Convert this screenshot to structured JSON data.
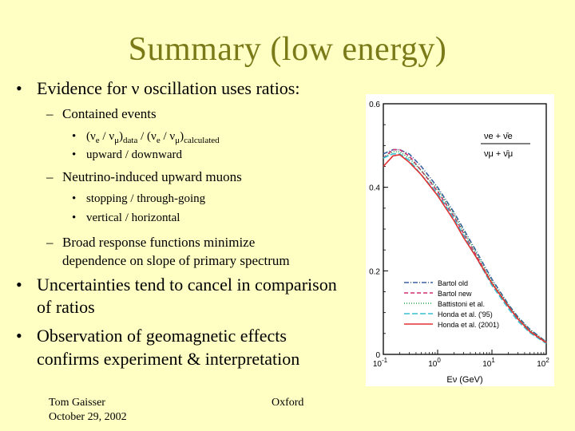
{
  "slide": {
    "title": "Summary (low energy)",
    "bullet1": "Evidence for ν oscillation uses ratios:",
    "sub1": "Contained events",
    "sub1a_parts": [
      "(ν",
      "e",
      " / ν",
      "μ",
      ")",
      "data",
      " / (ν",
      "e",
      " / ν",
      "μ",
      ")",
      "calculated"
    ],
    "sub1b": "upward / downward",
    "sub2": "Neutrino-induced upward muons",
    "sub2a": "stopping /  through-going",
    "sub2b": "vertical / horizontal",
    "sub3_line1": "Broad response functions minimize",
    "sub3_line2": "dependence on slope of primary spectrum",
    "bullet2_line1": "Uncertainties tend to cancel in comparison",
    "bullet2_line2": "of ratios",
    "bullet3_line1": "Observation of geomagnetic effects",
    "bullet3_line2": "confirms experiment & interpretation",
    "footer_author": "Tom Gaisser",
    "footer_date": "October 29, 2002",
    "footer_place": "Oxford",
    "bullet_char": "•",
    "dash_char": "–"
  },
  "chart_data": {
    "type": "line",
    "ratio_num": "νe + ν̄e",
    "ratio_den": "νμ + ν̄μ",
    "xlabel": "Eν (GeV)",
    "xscale": "log",
    "xlim": [
      0.1,
      100
    ],
    "ylim": [
      0,
      0.6
    ],
    "x_ticks": [
      "10-1",
      "100",
      "101",
      "102"
    ],
    "y_ticks": [
      "0",
      "0.2",
      "0.4",
      "0.6"
    ],
    "legend_position": "bottom-right",
    "series": [
      {
        "name": "Bartol old",
        "color": "#3a5fa0",
        "dash": "6,2,1,2",
        "x": [
          0.1,
          0.15,
          0.2,
          0.3,
          0.5,
          1,
          2,
          3,
          5,
          10,
          20,
          30,
          50,
          100
        ],
        "y": [
          0.48,
          0.49,
          0.49,
          0.48,
          0.45,
          0.4,
          0.34,
          0.3,
          0.25,
          0.18,
          0.12,
          0.09,
          0.06,
          0.03
        ]
      },
      {
        "name": "Bartol new",
        "color": "#d0306f",
        "dash": "5,3",
        "x": [
          0.1,
          0.15,
          0.2,
          0.3,
          0.5,
          1,
          2,
          3,
          5,
          10,
          20,
          30,
          50,
          100
        ],
        "y": [
          0.47,
          0.49,
          0.49,
          0.475,
          0.44,
          0.39,
          0.33,
          0.29,
          0.24,
          0.17,
          0.115,
          0.085,
          0.055,
          0.028
        ]
      },
      {
        "name": "Battistoni et al.",
        "color": "#22a044",
        "dash": "1,2",
        "x": [
          0.1,
          0.15,
          0.2,
          0.3,
          0.5,
          1,
          2,
          3,
          5,
          10,
          20,
          30,
          50,
          100
        ],
        "y": [
          0.47,
          0.485,
          0.485,
          0.47,
          0.44,
          0.395,
          0.335,
          0.295,
          0.245,
          0.175,
          0.118,
          0.088,
          0.058,
          0.03
        ]
      },
      {
        "name": "Honda et al. ('95)",
        "color": "#36c0d0",
        "dash": "7,3",
        "x": [
          0.1,
          0.15,
          0.2,
          0.3,
          0.5,
          1,
          2,
          3,
          5,
          10,
          20,
          30,
          50,
          100
        ],
        "y": [
          0.47,
          0.48,
          0.48,
          0.465,
          0.43,
          0.385,
          0.325,
          0.285,
          0.235,
          0.165,
          0.11,
          0.08,
          0.052,
          0.026
        ]
      },
      {
        "name": "Honda et al. (2001)",
        "color": "#e23030",
        "dash": "",
        "x": [
          0.1,
          0.15,
          0.2,
          0.3,
          0.5,
          1,
          2,
          3,
          5,
          10,
          20,
          30,
          50,
          100
        ],
        "y": [
          0.45,
          0.475,
          0.478,
          0.46,
          0.43,
          0.38,
          0.32,
          0.28,
          0.235,
          0.17,
          0.115,
          0.085,
          0.055,
          0.028
        ]
      }
    ]
  }
}
